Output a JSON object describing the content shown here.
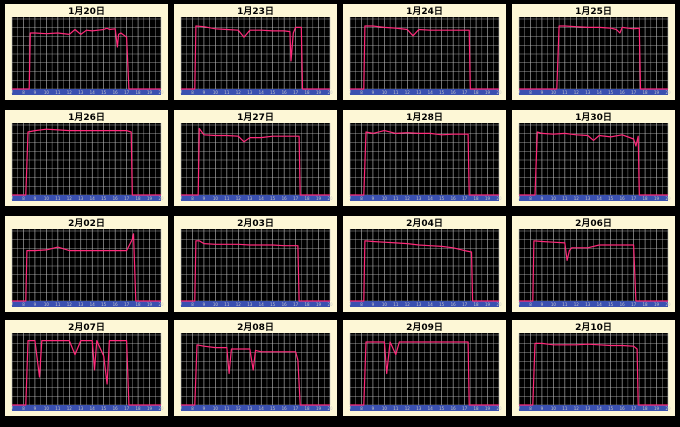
{
  "colors": {
    "frame": "#fdf7d6",
    "plot_bg": "#000000",
    "grid": "#bdbdbd",
    "line": "#ff2a7a",
    "axis_bar": "#3a50b0",
    "tick_text": "#c8c8c8"
  },
  "chart_data": [
    {
      "type": "line",
      "title": "1月20日",
      "xlim": [
        7,
        20
      ],
      "ylim": [
        0,
        100
      ],
      "x": [
        7,
        8.5,
        8.6,
        9,
        10,
        11,
        12,
        12.5,
        13,
        13.5,
        14,
        14.5,
        15,
        15.3,
        15.5,
        16,
        16.2,
        16.3,
        16.5,
        17,
        17.2,
        20
      ],
      "y": [
        0,
        0,
        80,
        80,
        79,
        80,
        78,
        85,
        78,
        84,
        83,
        84,
        85,
        87,
        85,
        86,
        60,
        78,
        80,
        74,
        0,
        0
      ]
    },
    {
      "type": "line",
      "title": "1月23日",
      "xlim": [
        7,
        20
      ],
      "ylim": [
        0,
        100
      ],
      "x": [
        7,
        8.2,
        8.3,
        9,
        10,
        11,
        12,
        12.5,
        13,
        14,
        15,
        16,
        16.5,
        16.6,
        16.8,
        17,
        17.5,
        17.6,
        20
      ],
      "y": [
        0,
        0,
        90,
        89,
        86,
        85,
        84,
        74,
        84,
        84,
        83,
        83,
        82,
        40,
        80,
        88,
        88,
        0,
        0
      ]
    },
    {
      "type": "line",
      "title": "1月24日",
      "xlim": [
        7,
        20
      ],
      "ylim": [
        0,
        100
      ],
      "x": [
        7,
        8.2,
        8.3,
        9,
        10,
        11,
        12,
        12.5,
        13,
        14,
        15,
        16,
        17,
        17.4,
        17.5,
        20
      ],
      "y": [
        0,
        0,
        90,
        90,
        88,
        87,
        85,
        76,
        85,
        84,
        84,
        84,
        84,
        84,
        0,
        0
      ]
    },
    {
      "type": "line",
      "title": "1月25日",
      "xlim": [
        7,
        20
      ],
      "ylim": [
        0,
        100
      ],
      "x": [
        7,
        10.3,
        10.5,
        11,
        12,
        13,
        14,
        15,
        15.5,
        15.8,
        16,
        17,
        17.5,
        17.6,
        20
      ],
      "y": [
        0,
        0,
        90,
        90,
        89,
        88,
        88,
        87,
        85,
        80,
        88,
        86,
        87,
        0,
        0
      ]
    },
    {
      "type": "line",
      "title": "1月26日",
      "xlim": [
        7,
        20
      ],
      "ylim": [
        0,
        100
      ],
      "x": [
        7,
        8.2,
        8.4,
        9,
        10,
        11,
        12,
        13,
        14,
        15,
        16,
        17,
        17.4,
        17.5,
        20
      ],
      "y": [
        0,
        0,
        90,
        92,
        94,
        93,
        92,
        92,
        92,
        92,
        92,
        92,
        90,
        0,
        0
      ]
    },
    {
      "type": "line",
      "title": "1月27日",
      "xlim": [
        7,
        20
      ],
      "ylim": [
        0,
        100
      ],
      "x": [
        7,
        8.5,
        8.6,
        9,
        10,
        11,
        12,
        12.5,
        13,
        14,
        15,
        16,
        17,
        17.3,
        17.4,
        20
      ],
      "y": [
        0,
        0,
        95,
        86,
        85,
        85,
        84,
        76,
        82,
        82,
        84,
        84,
        84,
        84,
        0,
        0
      ]
    },
    {
      "type": "line",
      "title": "1月28日",
      "xlim": [
        7,
        20
      ],
      "ylim": [
        0,
        100
      ],
      "x": [
        7,
        8.2,
        8.4,
        9,
        10,
        11,
        12,
        13,
        14,
        15,
        16,
        17,
        17.3,
        17.4,
        20
      ],
      "y": [
        0,
        0,
        90,
        88,
        92,
        88,
        89,
        88,
        88,
        86,
        87,
        87,
        87,
        0,
        0
      ]
    },
    {
      "type": "line",
      "title": "1月30日",
      "xlim": [
        7,
        20
      ],
      "ylim": [
        0,
        100
      ],
      "x": [
        7,
        8.4,
        8.6,
        9,
        10,
        11,
        12,
        13,
        13.5,
        14,
        15,
        16,
        17,
        17.2,
        17.4,
        17.5,
        20
      ],
      "y": [
        0,
        0,
        90,
        88,
        87,
        88,
        86,
        85,
        78,
        85,
        83,
        86,
        80,
        70,
        84,
        0,
        0
      ]
    },
    {
      "type": "line",
      "title": "2月02日",
      "xlim": [
        7,
        20
      ],
      "ylim": [
        0,
        100
      ],
      "x": [
        7,
        8.2,
        8.3,
        9,
        10,
        11,
        12,
        13,
        14,
        15,
        16,
        17,
        17.5,
        17.6,
        17.8,
        20
      ],
      "y": [
        0,
        0,
        72,
        72,
        73,
        77,
        72,
        72,
        72,
        72,
        72,
        72,
        88,
        96,
        0,
        0
      ]
    },
    {
      "type": "line",
      "title": "2月03日",
      "xlim": [
        7,
        20
      ],
      "ylim": [
        0,
        100
      ],
      "x": [
        7,
        8.2,
        8.3,
        8.6,
        9,
        10,
        11,
        12,
        13,
        14,
        15,
        16,
        17,
        17.2,
        17.3,
        20
      ],
      "y": [
        0,
        0,
        86,
        86,
        82,
        81,
        81,
        81,
        80,
        80,
        80,
        79,
        79,
        79,
        0,
        0
      ]
    },
    {
      "type": "line",
      "title": "2月04日",
      "xlim": [
        7,
        20
      ],
      "ylim": [
        0,
        100
      ],
      "x": [
        7,
        8.2,
        8.3,
        9,
        10,
        11,
        12,
        13,
        14,
        15,
        16,
        17,
        17.6,
        17.7,
        20
      ],
      "y": [
        0,
        0,
        86,
        85,
        84,
        83,
        82,
        80,
        79,
        78,
        76,
        72,
        70,
        0,
        0
      ]
    },
    {
      "type": "line",
      "title": "2月06日",
      "xlim": [
        7,
        20
      ],
      "ylim": [
        0,
        100
      ],
      "x": [
        7,
        8.2,
        8.3,
        9,
        10,
        11,
        11.2,
        11.4,
        11.6,
        12,
        13,
        14,
        15,
        16,
        16.5,
        17,
        17.2,
        20
      ],
      "y": [
        0,
        0,
        86,
        85,
        84,
        83,
        58,
        72,
        76,
        76,
        76,
        80,
        80,
        80,
        80,
        80,
        0,
        0
      ]
    },
    {
      "type": "line",
      "title": "2月07日",
      "xlim": [
        7,
        20
      ],
      "ylim": [
        0,
        100
      ],
      "x": [
        7,
        8.2,
        8.4,
        9,
        9.4,
        9.6,
        9.8,
        11,
        12,
        12.5,
        13,
        13.5,
        14,
        14.2,
        14.4,
        15,
        15.3,
        15.5,
        16,
        16.5,
        17,
        17.2,
        20
      ],
      "y": [
        0,
        0,
        92,
        92,
        40,
        92,
        92,
        92,
        92,
        72,
        92,
        92,
        92,
        50,
        92,
        70,
        30,
        92,
        92,
        92,
        92,
        0,
        0
      ]
    },
    {
      "type": "line",
      "title": "2月08日",
      "xlim": [
        7,
        20
      ],
      "ylim": [
        0,
        100
      ],
      "x": [
        7,
        8.2,
        8.4,
        9,
        10,
        11,
        11.2,
        11.4,
        12,
        13,
        13.3,
        13.5,
        14,
        15,
        16,
        17,
        17.2,
        17.4,
        20
      ],
      "y": [
        0,
        0,
        86,
        84,
        82,
        82,
        45,
        80,
        80,
        80,
        50,
        78,
        76,
        76,
        76,
        76,
        64,
        0,
        0
      ]
    },
    {
      "type": "line",
      "title": "2月09日",
      "xlim": [
        7,
        20
      ],
      "ylim": [
        0,
        100
      ],
      "x": [
        7,
        8.2,
        8.4,
        9,
        10,
        10.2,
        10.5,
        11,
        11.3,
        12,
        13,
        14,
        15,
        16,
        17,
        17.3,
        17.4,
        20
      ],
      "y": [
        0,
        0,
        90,
        90,
        90,
        45,
        90,
        72,
        90,
        90,
        90,
        90,
        90,
        90,
        90,
        90,
        0,
        0
      ]
    },
    {
      "type": "line",
      "title": "2月10日",
      "xlim": [
        7,
        20
      ],
      "ylim": [
        0,
        100
      ],
      "x": [
        7,
        8.2,
        8.4,
        9,
        10,
        11,
        12,
        13,
        14,
        15,
        16,
        17,
        17.3,
        17.4,
        20
      ],
      "y": [
        0,
        0,
        88,
        88,
        86,
        86,
        86,
        87,
        86,
        85,
        85,
        84,
        80,
        0,
        0
      ]
    }
  ]
}
